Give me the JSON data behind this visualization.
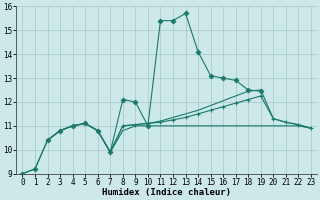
{
  "xlabel": "Humidex (Indice chaleur)",
  "xlim": [
    -0.5,
    23.5
  ],
  "ylim": [
    9,
    16
  ],
  "background_color": "#cce8e8",
  "grid_color": "#aacccc",
  "line_color": "#1a7a6a",
  "series": [
    {
      "x": [
        0,
        1,
        2,
        3,
        4,
        5,
        6,
        7,
        8,
        9,
        10,
        11,
        12,
        13,
        14,
        15,
        16,
        17,
        18,
        19
      ],
      "y": [
        9.0,
        9.2,
        10.4,
        10.8,
        11.0,
        11.1,
        10.8,
        9.9,
        12.1,
        12.0,
        11.0,
        15.4,
        15.4,
        15.7,
        14.1,
        13.1,
        13.0,
        12.9,
        12.5,
        12.45
      ],
      "marker": "D",
      "markersize": 2.5,
      "linestyle": "-",
      "linewidth": 0.8
    },
    {
      "x": [
        0,
        1,
        2,
        3,
        4,
        5,
        6,
        7,
        8,
        9,
        10,
        11,
        12,
        13,
        14,
        15,
        16,
        17,
        18,
        19,
        20,
        21,
        22,
        23
      ],
      "y": [
        9.0,
        9.2,
        10.4,
        10.8,
        11.0,
        11.1,
        10.8,
        9.9,
        10.8,
        11.0,
        11.0,
        11.0,
        11.0,
        11.0,
        11.0,
        11.0,
        11.0,
        11.0,
        11.0,
        11.0,
        11.0,
        11.0,
        11.0,
        10.9
      ],
      "marker": null,
      "markersize": 0,
      "linestyle": "-",
      "linewidth": 0.8
    },
    {
      "x": [
        2,
        3,
        4,
        5,
        6,
        7,
        8,
        9,
        10,
        11,
        12,
        13,
        14,
        15,
        16,
        17,
        18,
        19,
        20,
        21,
        22,
        23
      ],
      "y": [
        10.4,
        10.8,
        11.0,
        11.1,
        10.8,
        9.9,
        11.0,
        11.05,
        11.1,
        11.15,
        11.25,
        11.35,
        11.5,
        11.65,
        11.8,
        11.95,
        12.1,
        12.25,
        11.3,
        11.15,
        11.05,
        10.9
      ],
      "marker": "+",
      "markersize": 3.5,
      "linestyle": "-",
      "linewidth": 0.8
    },
    {
      "x": [
        2,
        3,
        4,
        5,
        6,
        7,
        8,
        9,
        10,
        11,
        12,
        13,
        14,
        15,
        16,
        17,
        18,
        19,
        20,
        21,
        22,
        23
      ],
      "y": [
        10.4,
        10.8,
        11.0,
        11.1,
        10.8,
        9.9,
        11.0,
        11.05,
        11.1,
        11.2,
        11.35,
        11.5,
        11.65,
        11.85,
        12.05,
        12.25,
        12.45,
        12.5,
        11.3,
        11.15,
        11.05,
        10.9
      ],
      "marker": null,
      "markersize": 0,
      "linestyle": "-",
      "linewidth": 0.8
    }
  ],
  "xticks": [
    0,
    1,
    2,
    3,
    4,
    5,
    6,
    7,
    8,
    9,
    10,
    11,
    12,
    13,
    14,
    15,
    16,
    17,
    18,
    19,
    20,
    21,
    22,
    23
  ],
  "yticks": [
    9,
    10,
    11,
    12,
    13,
    14,
    15,
    16
  ],
  "tick_fontsize": 5.5,
  "label_fontsize": 6.5
}
